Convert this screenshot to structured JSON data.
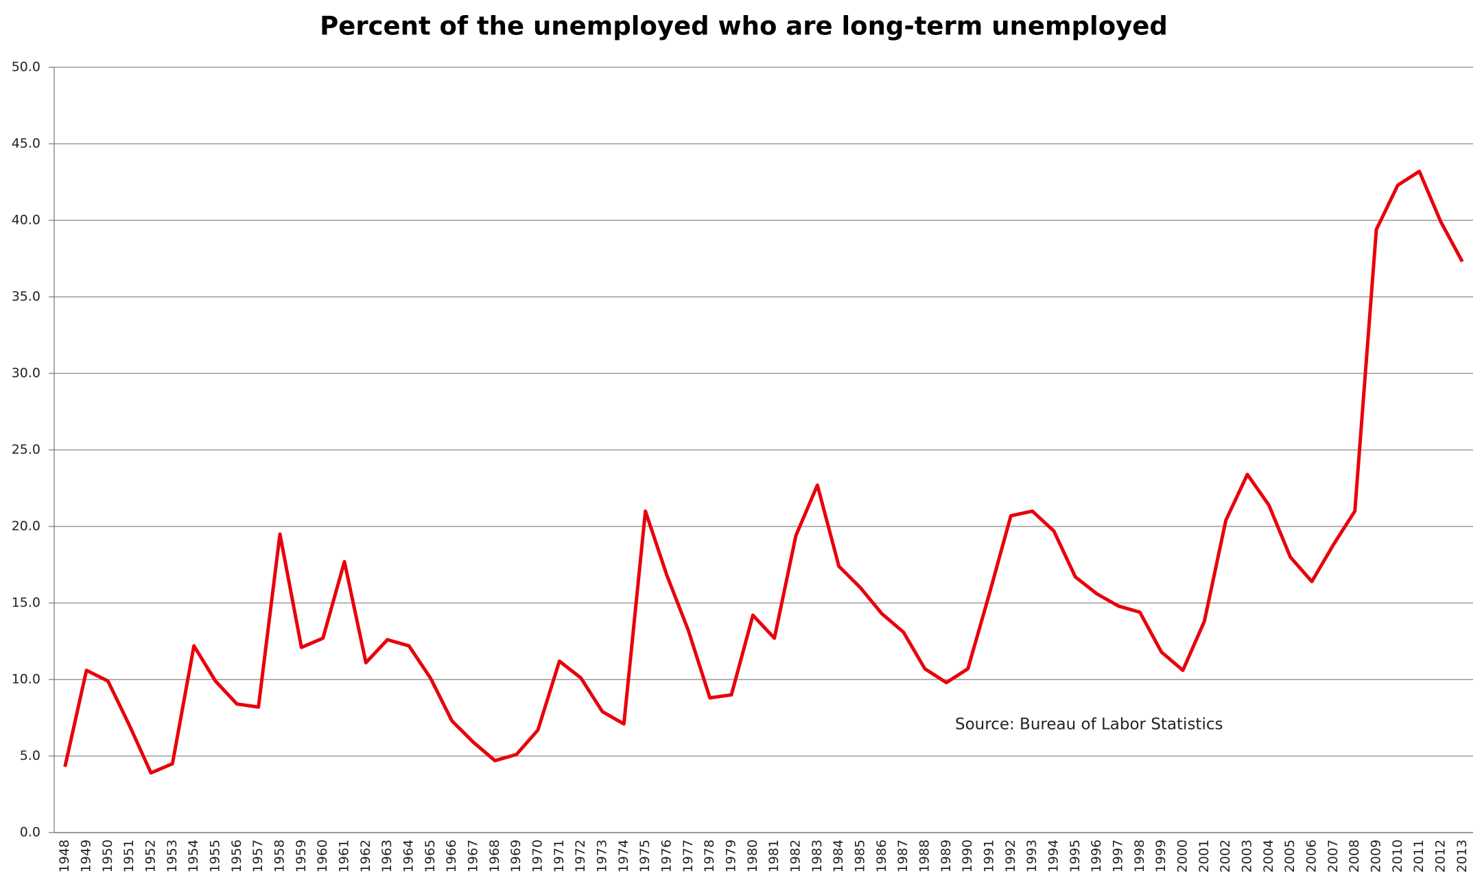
{
  "chart_data": {
    "type": "line",
    "title": "Percent of the unemployed who are long-term unemployed",
    "annotation": "Source: Bureau of Labor Statistics",
    "categories": [
      "1948",
      "1949",
      "1950",
      "1951",
      "1952",
      "1953",
      "1954",
      "1955",
      "1956",
      "1957",
      "1958",
      "1959",
      "1960",
      "1961",
      "1962",
      "1963",
      "1964",
      "1965",
      "1966",
      "1967",
      "1968",
      "1969",
      "1970",
      "1971",
      "1972",
      "1973",
      "1974",
      "1975",
      "1976",
      "1977",
      "1978",
      "1979",
      "1980",
      "1981",
      "1982",
      "1983",
      "1984",
      "1985",
      "1986",
      "1987",
      "1988",
      "1989",
      "1990",
      "1991",
      "1992",
      "1993",
      "1994",
      "1995",
      "1996",
      "1997",
      "1998",
      "1999",
      "2000",
      "2001",
      "2002",
      "2003",
      "2004",
      "2005",
      "2006",
      "2007",
      "2008",
      "2009",
      "2010",
      "2011",
      "2012",
      "2013"
    ],
    "values": [
      4.3,
      10.6,
      9.9,
      7.0,
      3.9,
      4.5,
      12.2,
      9.9,
      8.4,
      8.2,
      19.5,
      12.1,
      12.7,
      17.7,
      11.1,
      12.6,
      12.2,
      10.1,
      7.3,
      5.9,
      4.7,
      5.1,
      6.7,
      11.2,
      10.1,
      7.9,
      7.1,
      21.0,
      16.8,
      13.2,
      8.8,
      9.0,
      14.2,
      12.7,
      19.4,
      22.7,
      17.4,
      16.0,
      14.3,
      13.1,
      10.7,
      9.8,
      10.7,
      15.6,
      20.7,
      21.0,
      19.7,
      16.7,
      15.6,
      14.8,
      14.4,
      11.8,
      10.6,
      13.8,
      20.4,
      23.4,
      21.4,
      18.0,
      16.4,
      18.8,
      21.0,
      39.4,
      42.3,
      43.2,
      39.9,
      37.3
    ],
    "color": "#e8000b",
    "ylim": [
      0,
      50
    ],
    "yticks": [
      {
        "value": 0,
        "label": "0.0"
      },
      {
        "value": 5,
        "label": "5.0"
      },
      {
        "value": 10,
        "label": "10.0"
      },
      {
        "value": 15,
        "label": "15.0"
      },
      {
        "value": 20,
        "label": "20.0"
      },
      {
        "value": 25,
        "label": "25.0"
      },
      {
        "value": 30,
        "label": "30.0"
      },
      {
        "value": 35,
        "label": "35.0"
      },
      {
        "value": 40,
        "label": "40.0"
      },
      {
        "value": 45,
        "label": "45.0"
      },
      {
        "value": 50,
        "label": "50.0"
      }
    ],
    "grid": true
  }
}
